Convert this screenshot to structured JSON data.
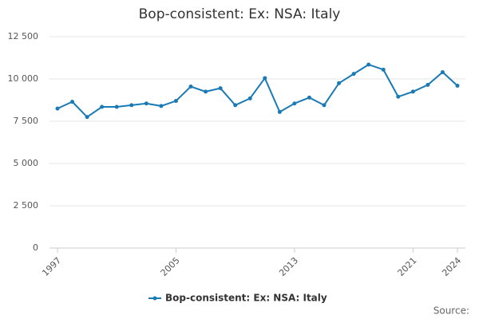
{
  "chart_data": {
    "type": "line",
    "title": "Bop-consistent: Ex: NSA: Italy",
    "x": [
      1997,
      1998,
      1999,
      2000,
      2001,
      2002,
      2003,
      2004,
      2005,
      2006,
      2007,
      2008,
      2009,
      2010,
      2011,
      2012,
      2013,
      2014,
      2015,
      2016,
      2017,
      2018,
      2019,
      2020,
      2021,
      2022,
      2023,
      2024
    ],
    "series": [
      {
        "name": "Bop-consistent: Ex: NSA: Italy",
        "color": "#1a7ab5",
        "values": [
          8250,
          8650,
          7750,
          8350,
          8350,
          8450,
          8550,
          8400,
          8700,
          9550,
          9250,
          9450,
          8450,
          8850,
          10050,
          8050,
          8550,
          8900,
          8450,
          9750,
          10300,
          10850,
          10550,
          8950,
          9250,
          9650,
          10400,
          9600
        ]
      }
    ],
    "xlim": [
      1997,
      2024
    ],
    "xticks": [
      1997,
      2005,
      2013,
      2021,
      2024
    ],
    "ylim": [
      0,
      12500
    ],
    "yticks": [
      0,
      {
        "value": 2500,
        "label": "2 500"
      },
      {
        "value": 5000,
        "label": "5 000"
      },
      {
        "value": 7500,
        "label": "7 500"
      },
      {
        "value": 10000,
        "label": "10 000"
      },
      {
        "value": 12500,
        "label": "12 500"
      }
    ],
    "grid": true,
    "legend": "bottom",
    "source": "Source:"
  }
}
